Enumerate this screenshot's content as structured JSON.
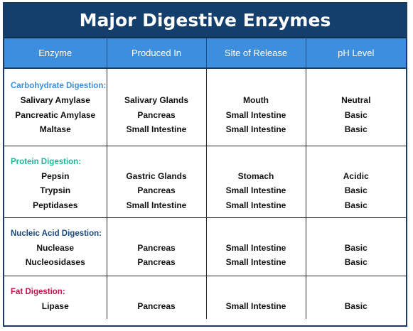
{
  "title": "Major Digestive Enzymes",
  "columns": [
    "Enzyme",
    "Produced In",
    "Site of Release",
    "pH Level"
  ],
  "colors": {
    "title_bg": "#143e6b",
    "header_bg": "#3e8ede",
    "carbohydrate": "#3b8fd9",
    "protein": "#1fb39a",
    "nucleic": "#1c4a7e",
    "fat": "#c0174b"
  },
  "groups": [
    {
      "category": "Carbohydrate Digestion:",
      "color": "#3b8fd9",
      "rows": [
        {
          "enzyme": "Salivary Amylase",
          "produced": "Salivary Glands",
          "site": "Mouth",
          "ph": "Neutral"
        },
        {
          "enzyme": "Pancreatic Amylase",
          "produced": "Pancreas",
          "site": "Small Intestine",
          "ph": "Basic"
        },
        {
          "enzyme": "Maltase",
          "produced": "Small Intestine",
          "site": "Small Intestine",
          "ph": "Basic"
        }
      ]
    },
    {
      "category": "Protein Digestion:",
      "color": "#1fb39a",
      "rows": [
        {
          "enzyme": "Pepsin",
          "produced": "Gastric Glands",
          "site": "Stomach",
          "ph": "Acidic"
        },
        {
          "enzyme": "Trypsin",
          "produced": "Pancreas",
          "site": "Small Intestine",
          "ph": "Basic"
        },
        {
          "enzyme": "Peptidases",
          "produced": "Small Intestine",
          "site": "Small Intestine",
          "ph": "Basic"
        }
      ]
    },
    {
      "category": "Nucleic Acid Digestion:",
      "color": "#1c4a7e",
      "rows": [
        {
          "enzyme": "Nuclease",
          "produced": "Pancreas",
          "site": "Small Intestine",
          "ph": "Basic"
        },
        {
          "enzyme": "Nucleosidases",
          "produced": "Pancreas",
          "site": "Small Intestine",
          "ph": "Basic"
        }
      ]
    },
    {
      "category": "Fat Digestion:",
      "color": "#c0174b",
      "rows": [
        {
          "enzyme": "Lipase",
          "produced": "Pancreas",
          "site": "Small Intestine",
          "ph": "Basic"
        }
      ]
    }
  ]
}
